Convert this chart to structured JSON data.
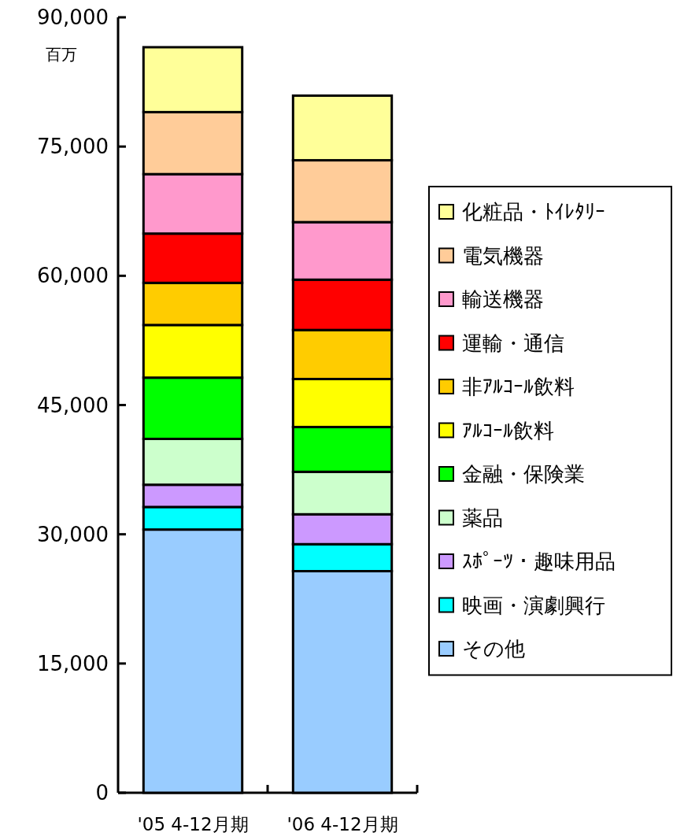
{
  "chart_data": {
    "type": "bar",
    "stacked": true,
    "ylabel": "百万",
    "categories": [
      "'05 4-12月期",
      "'06 4-12月期"
    ],
    "ylim": [
      0,
      90000
    ],
    "yticks": [
      {
        "value": 0,
        "label": "0"
      },
      {
        "value": 15000,
        "label": "15,000"
      },
      {
        "value": 30000,
        "label": "30,000"
      },
      {
        "value": 45000,
        "label": "45,000"
      },
      {
        "value": 60000,
        "label": "60,000"
      },
      {
        "value": 75000,
        "label": "75,000"
      },
      {
        "value": 90000,
        "label": "90,000"
      }
    ],
    "legend": "right",
    "grid": false,
    "series": [
      {
        "name": "その他",
        "color": "#99ccff",
        "values": [
          30550,
          25720
        ]
      },
      {
        "name": "映画・演劇興行",
        "color": "#00ffff",
        "values": [
          2620,
          3130
        ]
      },
      {
        "name": "ｽﾎﾟｰﾂ・趣味用品",
        "color": "#cc99ff",
        "values": [
          2580,
          3470
        ]
      },
      {
        "name": "薬品",
        "color": "#ccffcc",
        "values": [
          5320,
          4930
        ]
      },
      {
        "name": "金融・保険業",
        "color": "#00ff00",
        "values": [
          7110,
          5200
        ]
      },
      {
        "name": "ｱﾙｺｰﾙ飲料",
        "color": "#ffff00",
        "values": [
          6110,
          5570
        ]
      },
      {
        "name": "非ｱﾙｺｰﾙ飲料",
        "color": "#ffcc00",
        "values": [
          4890,
          5690
        ]
      },
      {
        "name": "運輸・通信",
        "color": "#ff0000",
        "values": [
          5720,
          5840
        ]
      },
      {
        "name": "輸送機器",
        "color": "#ff99cc",
        "values": [
          6900,
          6680
        ]
      },
      {
        "name": "電気機器",
        "color": "#ffcc99",
        "values": [
          7200,
          7180
        ]
      },
      {
        "name": "化粧品・ﾄｲﾚﾀﾘｰ",
        "color": "#ffff99",
        "values": [
          7530,
          7500
        ]
      }
    ]
  }
}
